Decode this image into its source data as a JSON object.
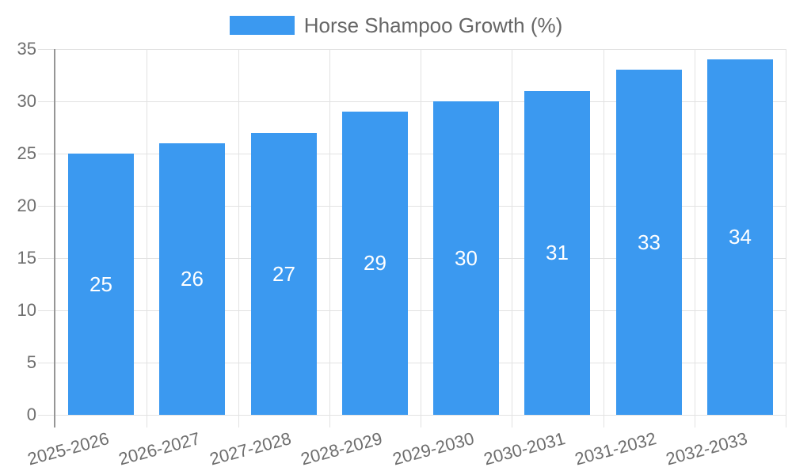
{
  "chart_data": {
    "type": "bar",
    "title": "Horse Shampoo Growth (%)",
    "legend": {
      "label": "Horse Shampoo Growth (%)",
      "position": "top"
    },
    "categories": [
      "2025-2026",
      "2026-2027",
      "2027-2028",
      "2028-2029",
      "2029-2030",
      "2030-2031",
      "2031-2032",
      "2032-2033"
    ],
    "series": [
      {
        "name": "Horse Shampoo Growth (%)",
        "values": [
          25,
          26,
          27,
          29,
          30,
          31,
          33,
          34
        ]
      }
    ],
    "bar_value_labels": [
      "25",
      "26",
      "27",
      "29",
      "30",
      "31",
      "33",
      "34"
    ],
    "xlabel": "",
    "ylabel": "",
    "ylim": [
      0,
      35
    ],
    "yticks": [
      0,
      5,
      10,
      15,
      20,
      25,
      30,
      35
    ],
    "grid": true,
    "x_tick_rotation_deg": -15,
    "colors": {
      "bar": "#3b99f0",
      "bar_label": "#ffffff",
      "axis_text": "#6e6e6e",
      "legend_text": "#666666",
      "grid_line": "#e2e2e2",
      "axis_line": "#969696",
      "background": "#ffffff"
    }
  }
}
